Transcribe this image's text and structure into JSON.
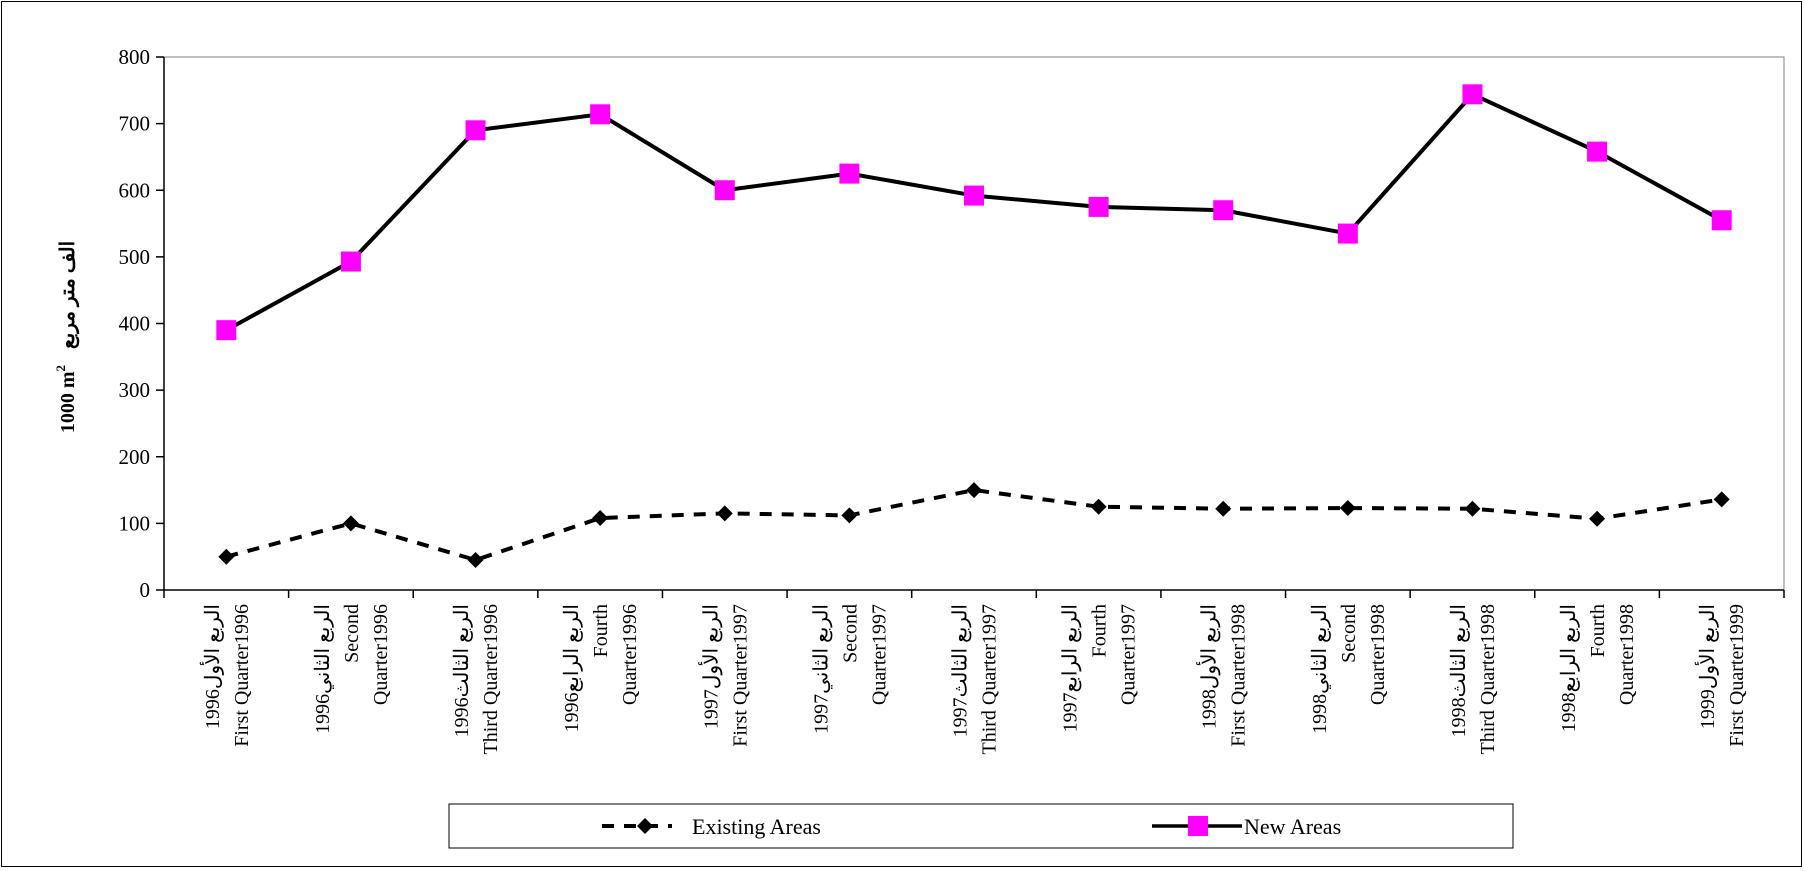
{
  "chart_data": {
    "type": "line",
    "ylabel_main": "1000 m",
    "ylabel_sup": "2",
    "ylabel_arabic": "الف متر مربع",
    "ylim": [
      0,
      800
    ],
    "yticks": [
      "0",
      "100",
      "200",
      "300",
      "400",
      "500",
      "600",
      "700",
      "800"
    ],
    "grid": false,
    "legend_position": "bottom",
    "categories": [
      {
        "ar": "الربع الأول1996",
        "en1": "First Quarter1996",
        "en2": ""
      },
      {
        "ar": "الربع الثاني1996",
        "en1": "Second",
        "en2": "Quarter1996"
      },
      {
        "ar": "الربع الثالث1996",
        "en1": "Third Quarter1996",
        "en2": ""
      },
      {
        "ar": "الربع الرابع1996",
        "en1": "Fourth",
        "en2": "Quarter1996"
      },
      {
        "ar": "الربع الأول1997",
        "en1": "First Quarter1997",
        "en2": ""
      },
      {
        "ar": "الربع الثاني1997",
        "en1": "Second",
        "en2": "Quarter1997"
      },
      {
        "ar": "الربع الثالث1997",
        "en1": "Third Quarter1997",
        "en2": ""
      },
      {
        "ar": "الربع الرابع1997",
        "en1": "Fourth",
        "en2": "Quarter1997"
      },
      {
        "ar": "الربع الأول1998",
        "en1": "First Quarter1998",
        "en2": ""
      },
      {
        "ar": "الربع الثاني1998",
        "en1": "Second",
        "en2": "Quarter1998"
      },
      {
        "ar": "الربع الثالث1998",
        "en1": "Third Quarter1998",
        "en2": ""
      },
      {
        "ar": "الربع الرابع1998",
        "en1": "Fourth",
        "en2": "Quarter1998"
      },
      {
        "ar": "الربع الأول1999",
        "en1": "First Quarter1999",
        "en2": ""
      }
    ],
    "series": [
      {
        "name": "Existing Areas",
        "style": "dashed",
        "marker": "diamond",
        "line_color": "#000000",
        "marker_color": "#000000",
        "values": [
          50,
          100,
          45,
          108,
          115,
          112,
          150,
          125,
          122,
          123,
          122,
          107,
          136
        ]
      },
      {
        "name": "New Areas",
        "style": "solid",
        "marker": "square",
        "line_color": "#000000",
        "marker_color": "#ff00ff",
        "values": [
          390,
          493,
          690,
          714,
          600,
          625,
          592,
          575,
          570,
          535,
          744,
          658,
          555
        ]
      }
    ]
  }
}
